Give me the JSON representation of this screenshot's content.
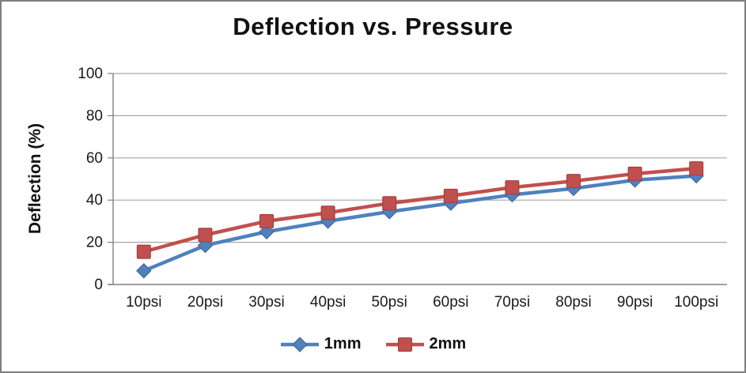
{
  "chart_data": {
    "type": "line",
    "title": "Deflection vs. Pressure",
    "xlabel": "",
    "ylabel": "Deflection (%)",
    "categories": [
      "10psi",
      "20psi",
      "30psi",
      "40psi",
      "50psi",
      "60psi",
      "70psi",
      "80psi",
      "90psi",
      "100psi"
    ],
    "series": [
      {
        "name": "1mm",
        "marker": "diamond",
        "color": "#4F81BD",
        "edge_color": "#3A6496",
        "values": [
          6.5,
          18.5,
          25,
          30,
          34.5,
          38.5,
          42.5,
          45.5,
          49.5,
          51.5
        ]
      },
      {
        "name": "2mm",
        "marker": "square",
        "color": "#C0504D",
        "edge_color": "#9E3D3B",
        "values": [
          15.5,
          23.5,
          30,
          34,
          38.5,
          42,
          46,
          49,
          52.5,
          55
        ]
      }
    ],
    "ylim": [
      0,
      100
    ],
    "yticks": [
      0,
      20,
      40,
      60,
      80,
      100
    ],
    "grid": true,
    "grid_color": "#A6A6A6",
    "axis_color": "#808080",
    "legend_position": "bottom"
  }
}
